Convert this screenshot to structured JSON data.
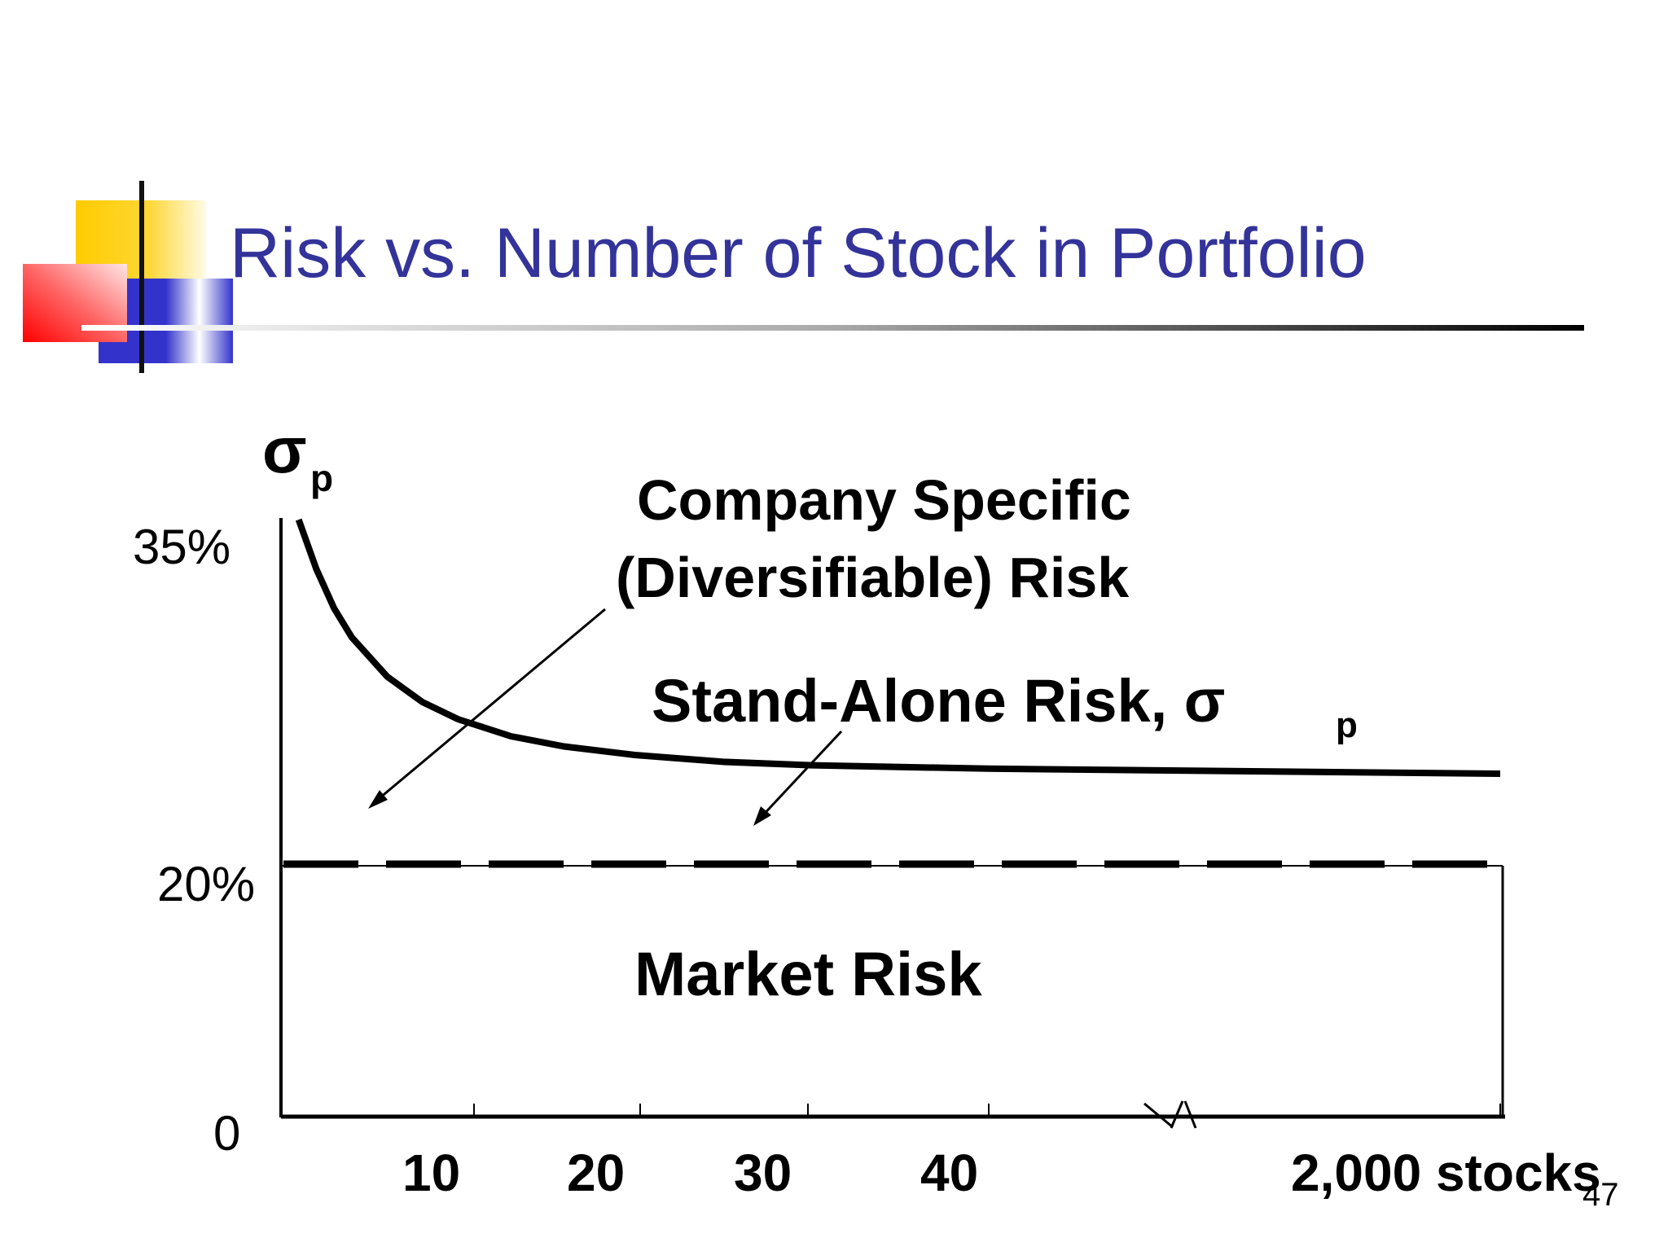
{
  "slide": {
    "title": "Risk vs. Number of Stock in Portfolio",
    "page_number": "47",
    "colors": {
      "title": "#33339a",
      "deco_yellow": "#ffcc00",
      "deco_red": "#ff0000",
      "deco_blue": "#3333cc"
    }
  },
  "chart_data": {
    "type": "line",
    "y_axis_symbol": "σ",
    "y_axis_subscript": "p",
    "y_ticks": [
      "35%",
      "20%",
      "0"
    ],
    "x_ticks": [
      "10",
      "20",
      "30",
      "40",
      "2,000 stocks"
    ],
    "series": [
      {
        "name": "Stand-Alone Risk, σp",
        "label_main": "Stand-Alone Risk, σ",
        "label_sub": "p",
        "x": [
          1,
          2,
          3,
          4,
          6,
          8,
          10,
          13,
          16,
          20,
          25,
          30,
          35,
          40,
          2000
        ],
        "y": [
          35,
          32.1,
          29.8,
          28.1,
          25.8,
          24.3,
          23.3,
          22.3,
          21.7,
          21.2,
          20.8,
          20.6,
          20.5,
          20.4,
          20.1
        ]
      }
    ],
    "market_risk_level": 20,
    "annotations": {
      "company_specific_line1": "Company Specific",
      "company_specific_line2": "(Diversifiable) Risk",
      "market_risk": "Market Risk"
    },
    "ylim": [
      0,
      35
    ],
    "axis_break": true,
    "grid": false
  }
}
